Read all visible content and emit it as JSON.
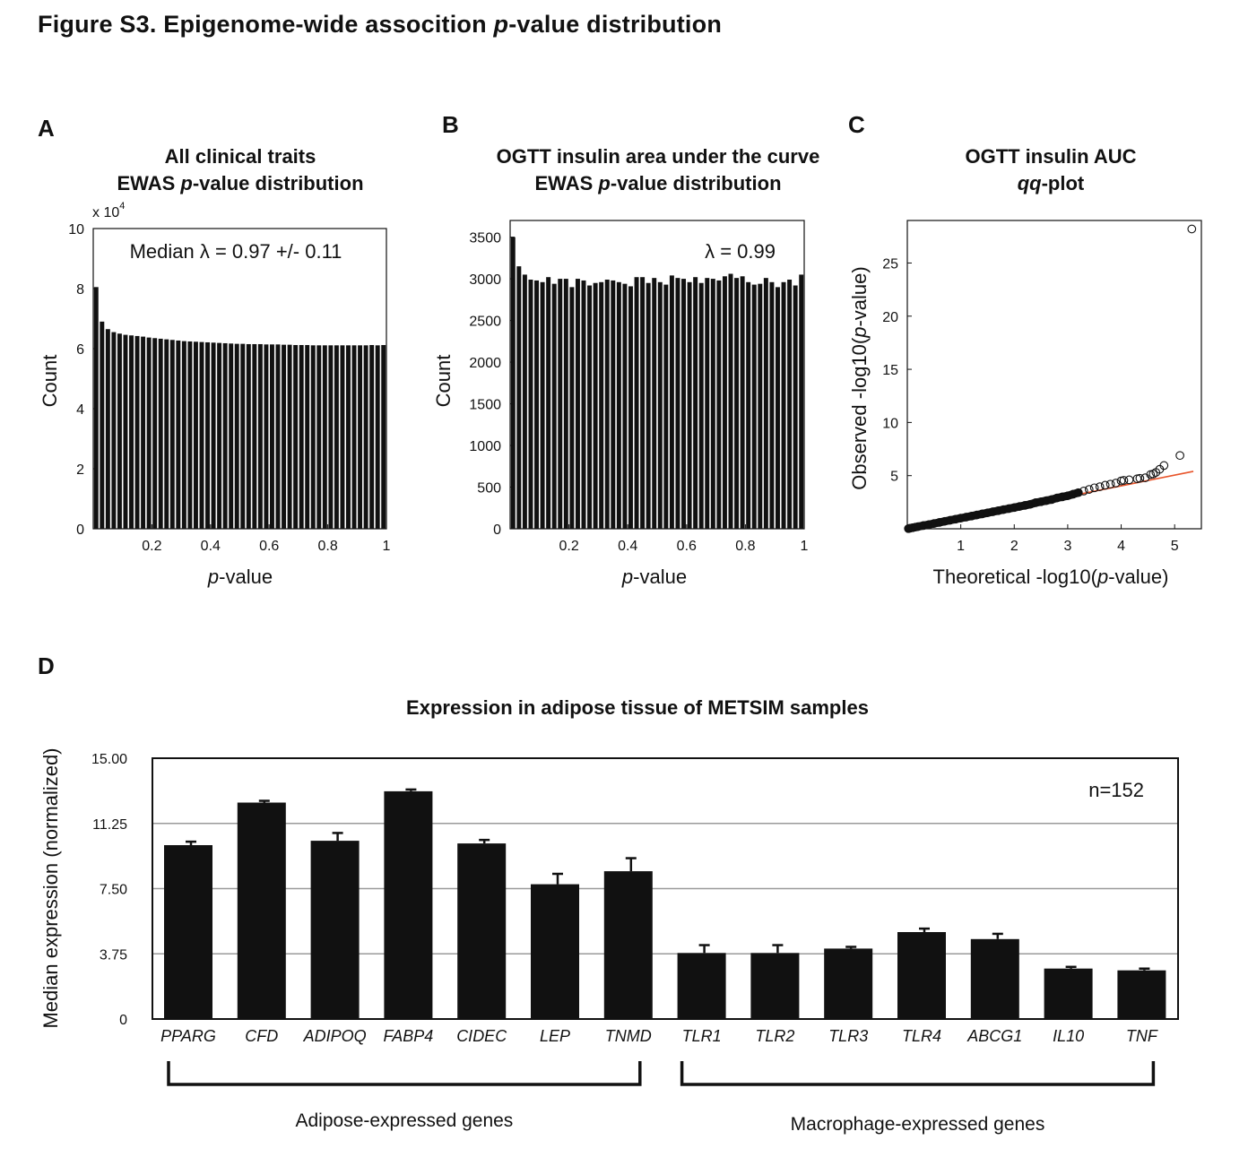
{
  "figure_title": {
    "prefix": "Figure S3.  Epigenome-wide assocition ",
    "italic": "p",
    "suffix": "-value distribution"
  },
  "chart_data": [
    {
      "panel": "A",
      "type": "bar",
      "title_line1": "All clinical traits",
      "title_line2": [
        "EWAS ",
        "p",
        "-value distribution"
      ],
      "xlabel": [
        "",
        "p",
        "-value"
      ],
      "ylabel": "Count",
      "y_multiplier": "x 10",
      "y_multiplier_exp": "4",
      "annotation": "Median λ = 0.97 +/- 0.11",
      "xlim": [
        0,
        1
      ],
      "ylim": [
        0,
        10
      ],
      "xticks": [
        0.2,
        0.4,
        0.6,
        0.8,
        1
      ],
      "xtick_labels": [
        "0.2",
        "0.4",
        "0.6",
        "0.8",
        "1"
      ],
      "yticks": [
        0,
        2,
        4,
        6,
        8,
        10
      ],
      "ytick_labels": [
        "0",
        "2",
        "4",
        "6",
        "8",
        "10"
      ],
      "bin_width": 0.02,
      "values": [
        8.05,
        6.9,
        6.65,
        6.55,
        6.5,
        6.46,
        6.44,
        6.42,
        6.4,
        6.37,
        6.35,
        6.33,
        6.31,
        6.29,
        6.27,
        6.25,
        6.24,
        6.23,
        6.22,
        6.21,
        6.2,
        6.19,
        6.18,
        6.17,
        6.16,
        6.16,
        6.15,
        6.15,
        6.15,
        6.14,
        6.14,
        6.14,
        6.13,
        6.13,
        6.12,
        6.12,
        6.12,
        6.11,
        6.11,
        6.11,
        6.11,
        6.11,
        6.11,
        6.11,
        6.11,
        6.11,
        6.11,
        6.12,
        6.11,
        6.12
      ]
    },
    {
      "panel": "B",
      "type": "bar",
      "title_line1": "OGTT insulin area under the curve",
      "title_line2": [
        "EWAS ",
        "p",
        "-value distribution"
      ],
      "xlabel": [
        "",
        "p",
        "-value"
      ],
      "ylabel": "Count",
      "annotation": "λ = 0.99",
      "xlim": [
        0,
        1
      ],
      "ylim": [
        0,
        3700
      ],
      "xticks": [
        0.2,
        0.4,
        0.6,
        0.8,
        1
      ],
      "xtick_labels": [
        "0.2",
        "0.4",
        "0.6",
        "0.8",
        "1"
      ],
      "yticks": [
        0,
        500,
        1000,
        1500,
        2000,
        2500,
        3000,
        3500
      ],
      "ytick_labels": [
        "0",
        "500",
        "1000",
        "1500",
        "2000",
        "2500",
        "3000",
        "3500"
      ],
      "bin_width": 0.02,
      "values": [
        3500,
        3150,
        3050,
        2990,
        2980,
        2960,
        3020,
        2940,
        3000,
        3000,
        2900,
        3000,
        2980,
        2920,
        2950,
        2960,
        2990,
        2980,
        2960,
        2940,
        2910,
        3020,
        3020,
        2950,
        3010,
        2960,
        2930,
        3040,
        3010,
        3000,
        2960,
        3020,
        2950,
        3010,
        3000,
        2980,
        3030,
        3060,
        3010,
        3030,
        2960,
        2930,
        2940,
        3010,
        2960,
        2900,
        2960,
        2990,
        2920,
        3050
      ]
    },
    {
      "panel": "C",
      "type": "scatter",
      "title_line1": "OGTT insulin AUC",
      "title_line2": [
        "",
        "qq",
        "-plot"
      ],
      "xlabel": [
        "Theoretical -log10(",
        "p",
        "-value)"
      ],
      "ylabel": [
        "Observed -log10(",
        "p",
        "-value)"
      ],
      "xlim": [
        0,
        5.5
      ],
      "ylim": [
        0,
        29
      ],
      "xticks": [
        1,
        2,
        3,
        4,
        5
      ],
      "xtick_labels": [
        "1",
        "2",
        "3",
        "4",
        "5"
      ],
      "yticks": [
        5,
        10,
        15,
        20,
        25
      ],
      "ytick_labels": [
        "5",
        "10",
        "15",
        "20",
        "25"
      ],
      "reference_line": {
        "from": [
          0,
          0
        ],
        "to": [
          5.35,
          5.4
        ],
        "color": "#e8542a"
      },
      "points_x": [
        0.02,
        0.05,
        0.1,
        0.15,
        0.2,
        0.3,
        0.4,
        0.5,
        0.6,
        0.7,
        0.8,
        0.9,
        1.0,
        1.1,
        1.2,
        1.3,
        1.4,
        1.5,
        1.6,
        1.7,
        1.8,
        1.9,
        2.0,
        2.1,
        2.2,
        2.3,
        2.4,
        2.5,
        2.6,
        2.7,
        2.8,
        2.9,
        3.0,
        3.1,
        3.2,
        3.3,
        3.4,
        3.5,
        3.6,
        3.7,
        3.8,
        3.9,
        4.0,
        4.05,
        4.15,
        4.3,
        4.35,
        4.45,
        4.55,
        4.6,
        4.65,
        4.72,
        4.8,
        5.1,
        5.32
      ],
      "points_y": [
        0.02,
        0.05,
        0.1,
        0.15,
        0.2,
        0.3,
        0.4,
        0.5,
        0.6,
        0.7,
        0.8,
        0.9,
        1.0,
        1.1,
        1.2,
        1.3,
        1.4,
        1.5,
        1.6,
        1.7,
        1.8,
        1.9,
        2.0,
        2.1,
        2.2,
        2.3,
        2.45,
        2.55,
        2.65,
        2.75,
        2.9,
        3.0,
        3.1,
        3.25,
        3.4,
        3.55,
        3.7,
        3.85,
        3.95,
        4.1,
        4.2,
        4.3,
        4.5,
        4.55,
        4.6,
        4.7,
        4.75,
        4.8,
        5.1,
        5.15,
        5.3,
        5.6,
        5.95,
        6.9,
        28.2
      ]
    },
    {
      "panel": "D",
      "type": "bar",
      "title": "Expression in adipose tissue of METSIM samples",
      "ylabel": "Median expression (normalized)",
      "annotation": "n=152",
      "ylim": [
        0,
        15
      ],
      "yticks": [
        0,
        3.75,
        7.5,
        11.25,
        15
      ],
      "ytick_labels": [
        "0",
        "3.75",
        "7.50",
        "11.25",
        "15.00"
      ],
      "grid": true,
      "categories": [
        "PPARG",
        "CFD",
        "ADIPOQ",
        "FABP4",
        "CIDEC",
        "LEP",
        "TNMD",
        "TLR1",
        "TLR2",
        "TLR3",
        "TLR4",
        "ABCG1",
        "IL10",
        "TNF"
      ],
      "values": [
        10.0,
        12.45,
        10.25,
        13.1,
        10.1,
        7.75,
        8.5,
        3.8,
        3.8,
        4.05,
        5.0,
        4.6,
        2.9,
        2.8
      ],
      "errors": [
        0.2,
        0.1,
        0.45,
        0.1,
        0.2,
        0.6,
        0.75,
        0.45,
        0.45,
        0.1,
        0.2,
        0.3,
        0.1,
        0.1
      ],
      "groups": [
        {
          "label": "Adipose-expressed genes",
          "from": 0,
          "to": 6
        },
        {
          "label": "Macrophage-expressed genes",
          "from": 7,
          "to": 13
        }
      ]
    }
  ]
}
